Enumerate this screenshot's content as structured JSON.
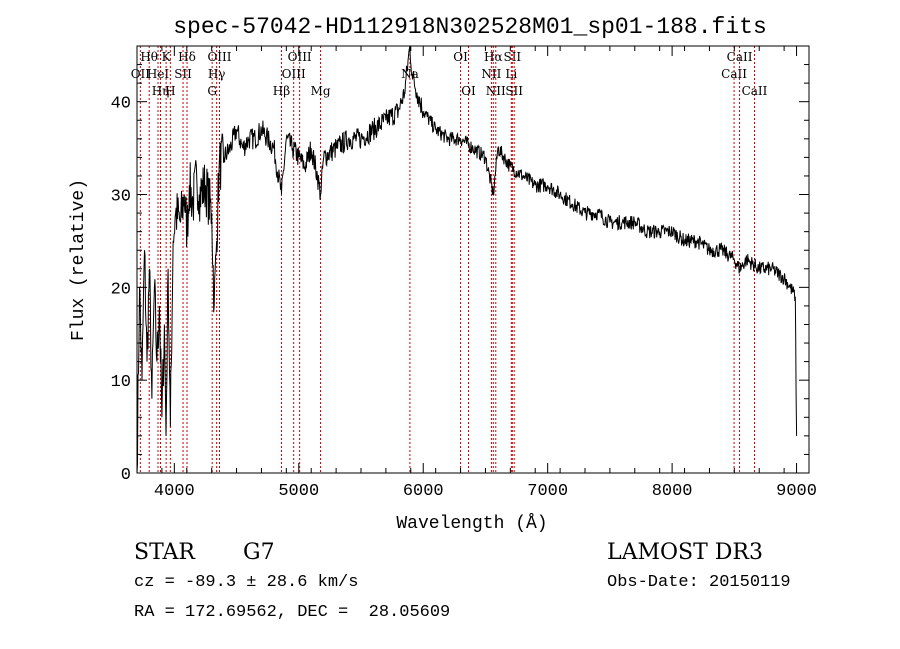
{
  "chart_data": {
    "type": "line",
    "title": "spec-57042-HD112918N302528M01_sp01-188.fits",
    "xlabel": "Wavelength (Å)",
    "ylabel": "Flux (relative)",
    "xlim": [
      3700,
      9100
    ],
    "ylim": [
      0,
      46
    ],
    "xticks": [
      4000,
      5000,
      6000,
      7000,
      8000,
      9000
    ],
    "xtick_labels": [
      "4000",
      "5000",
      "6000",
      "7000",
      "8000",
      "9000"
    ],
    "yticks": [
      0,
      10,
      20,
      30,
      40
    ],
    "ytick_labels": [
      "0",
      "10",
      "20",
      "30",
      "40"
    ],
    "grid": false,
    "series": [
      {
        "name": "spectrum",
        "color": "#000000",
        "x": [
          3700,
          3720,
          3740,
          3760,
          3780,
          3800,
          3820,
          3840,
          3860,
          3880,
          3900,
          3920,
          3933,
          3950,
          3968,
          3990,
          4010,
          4050,
          4080,
          4102,
          4120,
          4150,
          4180,
          4200,
          4250,
          4300,
          4320,
          4340,
          4360,
          4400,
          4450,
          4500,
          4550,
          4600,
          4650,
          4700,
          4750,
          4800,
          4861,
          4900,
          4950,
          5000,
          5050,
          5100,
          5150,
          5175,
          5200,
          5300,
          5400,
          5500,
          5600,
          5700,
          5800,
          5850,
          5893,
          5910,
          5950,
          6000,
          6100,
          6200,
          6300,
          6400,
          6500,
          6563,
          6600,
          6700,
          6800,
          6900,
          7000,
          7100,
          7200,
          7300,
          7400,
          7500,
          7600,
          7700,
          7800,
          7900,
          8000,
          8100,
          8200,
          8300,
          8400,
          8500,
          8542,
          8600,
          8700,
          8800,
          8900,
          8950,
          8990,
          9000
        ],
        "y": [
          0,
          20,
          10,
          24,
          12,
          22,
          8,
          20,
          12,
          18,
          6,
          16,
          4,
          22,
          5,
          25,
          28,
          27,
          30,
          26,
          31,
          29,
          32,
          30,
          31,
          28,
          18,
          25,
          33,
          34,
          35,
          37,
          35,
          36,
          36,
          37,
          36,
          35,
          30,
          36,
          35,
          34,
          33,
          35,
          32,
          30,
          34,
          35,
          36,
          36,
          37,
          38,
          39,
          41,
          46,
          43,
          41,
          39,
          37,
          36,
          36,
          35,
          34,
          30,
          35,
          33,
          32,
          31,
          31,
          30,
          29,
          28,
          28,
          27,
          27,
          27,
          26,
          26,
          26,
          25,
          25,
          24,
          24,
          23,
          22,
          23,
          22,
          22,
          21,
          20,
          19,
          4
        ]
      }
    ],
    "line_markers": [
      {
        "wavelength": 3727,
        "label": "OII",
        "row": 2
      },
      {
        "wavelength": 3798,
        "label": "Hθ",
        "row": 1
      },
      {
        "wavelength": 3869,
        "label": "HeI",
        "row": 2
      },
      {
        "wavelength": 3889,
        "label": "Hη",
        "row": 3
      },
      {
        "wavelength": 3934,
        "label": "K",
        "row": 1
      },
      {
        "wavelength": 3968,
        "label": "H",
        "row": 3
      },
      {
        "wavelength": 4102,
        "label": "Hδ",
        "row": 1
      },
      {
        "wavelength": 4070,
        "label": "SII",
        "row": 2
      },
      {
        "wavelength": 4304,
        "label": "G",
        "row": 3
      },
      {
        "wavelength": 4340,
        "label": "Hγ",
        "row": 2
      },
      {
        "wavelength": 4363,
        "label": "OIII",
        "row": 1
      },
      {
        "wavelength": 4861,
        "label": "Hβ",
        "row": 3
      },
      {
        "wavelength": 4959,
        "label": "OIII",
        "row": 2
      },
      {
        "wavelength": 5007,
        "label": "OIII",
        "row": 1
      },
      {
        "wavelength": 5175,
        "label": "Mg",
        "row": 3
      },
      {
        "wavelength": 5893,
        "label": "Na",
        "row": 2
      },
      {
        "wavelength": 6300,
        "label": "OI",
        "row": 1
      },
      {
        "wavelength": 6364,
        "label": "OI",
        "row": 3
      },
      {
        "wavelength": 6548,
        "label": "NII",
        "row": 2
      },
      {
        "wavelength": 6563,
        "label": "Hα",
        "row": 1
      },
      {
        "wavelength": 6583,
        "label": "NII",
        "row": 3
      },
      {
        "wavelength": 6708,
        "label": "Li",
        "row": 2
      },
      {
        "wavelength": 6716,
        "label": "SII",
        "row": 1
      },
      {
        "wavelength": 6731,
        "label": "SII",
        "row": 3
      },
      {
        "wavelength": 8498,
        "label": "CaII",
        "row": 2
      },
      {
        "wavelength": 8542,
        "label": "CaII",
        "row": 1
      },
      {
        "wavelength": 8662,
        "label": "CaII",
        "row": 3
      }
    ],
    "marker_color": "#cc0000",
    "axis_color": "#000000"
  },
  "info": {
    "object_class": "STAR",
    "subclass": "G7",
    "survey": "LAMOST DR3",
    "redshift": "cz = -89.3 ± 28.6 km/s",
    "obs_date": "Obs-Date: 20150119",
    "coordinates": "RA = 172.69562, DEC =  28.05609"
  }
}
